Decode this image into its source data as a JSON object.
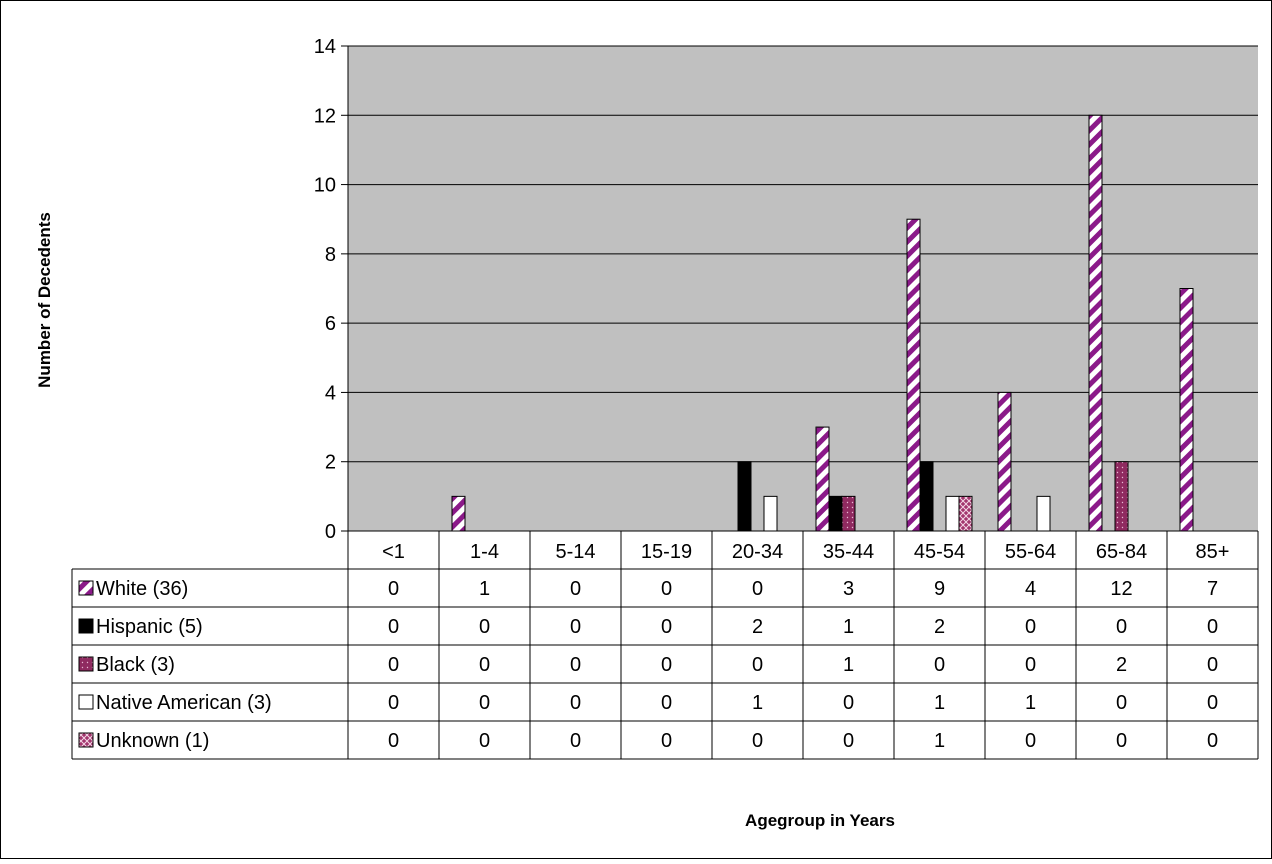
{
  "chart_data": {
    "type": "bar",
    "title": "",
    "xlabel": "Agegroup in Years",
    "ylabel": "Number of Decedents",
    "ylim": [
      0,
      14
    ],
    "yticks": [
      0,
      2,
      4,
      6,
      8,
      10,
      12,
      14
    ],
    "grid": true,
    "legend": "data-table",
    "categories": [
      "<1",
      "1-4",
      "5-14",
      "15-19",
      "20-34",
      "35-44",
      "45-54",
      "55-64",
      "65-84",
      "85+"
    ],
    "series": [
      {
        "name": "White (36)",
        "pattern": "diagonal-stripes",
        "color": "#8b1a89",
        "values": [
          0,
          1,
          0,
          0,
          0,
          3,
          9,
          4,
          12,
          7
        ]
      },
      {
        "name": "Hispanic (5)",
        "pattern": "solid",
        "color": "#000000",
        "values": [
          0,
          0,
          0,
          0,
          2,
          1,
          2,
          0,
          0,
          0
        ]
      },
      {
        "name": "Black (3)",
        "pattern": "dotted",
        "color": "#8f2a60",
        "values": [
          0,
          0,
          0,
          0,
          0,
          1,
          0,
          0,
          2,
          0
        ]
      },
      {
        "name": "Native American (3)",
        "pattern": "solid",
        "color": "#ffffff",
        "values": [
          0,
          0,
          0,
          0,
          1,
          0,
          1,
          1,
          0,
          0
        ]
      },
      {
        "name": "Unknown (1)",
        "pattern": "crosshatch",
        "color": "#a3366e",
        "values": [
          0,
          0,
          0,
          0,
          0,
          0,
          1,
          0,
          0,
          0
        ]
      }
    ],
    "colors": {
      "plot_background": "#c0c0c0",
      "gridline": "#000000"
    }
  }
}
